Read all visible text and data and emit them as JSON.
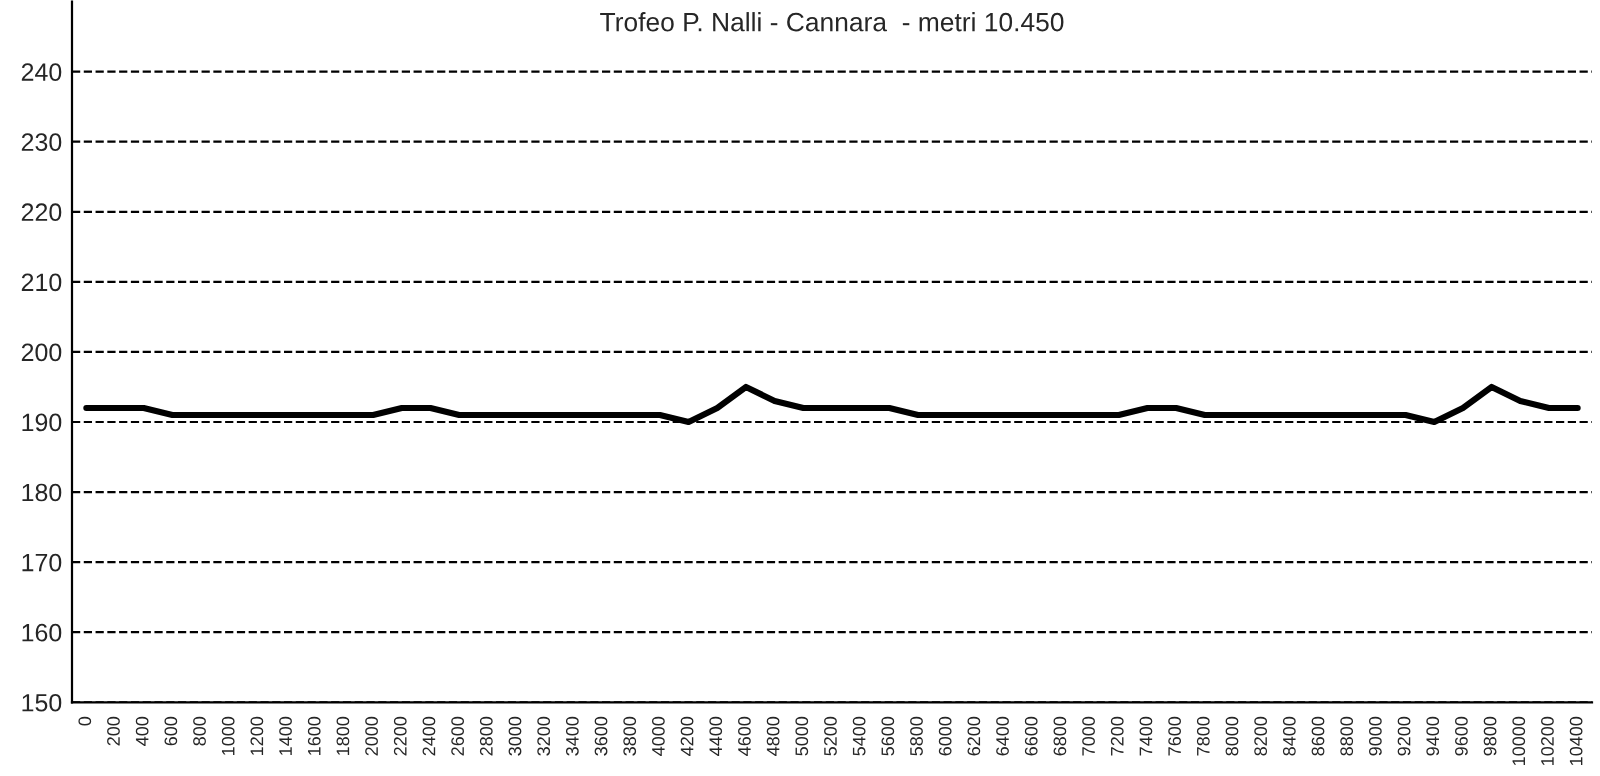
{
  "chart_data": {
    "type": "line",
    "title": "Trofeo P. Nalli - Cannara  - metri 10.450",
    "categories": [
      "0",
      "200",
      "400",
      "600",
      "800",
      "1000",
      "1200",
      "1400",
      "1600",
      "1800",
      "2000",
      "2200",
      "2400",
      "2600",
      "2800",
      "3000",
      "3200",
      "3400",
      "3600",
      "3800",
      "4000",
      "4200",
      "4400",
      "4600",
      "4800",
      "5000",
      "5200",
      "5400",
      "5600",
      "5800",
      "6000",
      "6200",
      "6400",
      "6600",
      "6800",
      "7000",
      "7200",
      "7400",
      "7600",
      "7800",
      "8000",
      "8200",
      "8400",
      "8600",
      "8800",
      "9000",
      "9200",
      "9400",
      "9600",
      "9800",
      "10000",
      "10200",
      "10400"
    ],
    "series": [
      {
        "color": "#000000",
        "values": [
          192,
          192,
          192,
          191,
          191,
          191,
          191,
          191,
          191,
          191,
          191,
          192,
          192,
          191,
          191,
          191,
          191,
          191,
          191,
          191,
          191,
          190,
          192,
          195,
          193,
          192,
          192,
          192,
          192,
          191,
          191,
          191,
          191,
          191,
          191,
          191,
          191,
          192,
          192,
          191,
          191,
          191,
          191,
          191,
          191,
          191,
          191,
          190,
          192,
          195,
          193,
          192,
          192
        ]
      }
    ],
    "ylim": [
      150,
      250
    ],
    "yticks": [
      150,
      160,
      170,
      180,
      190,
      200,
      210,
      220,
      230,
      240
    ],
    "grid": "y",
    "legend": false,
    "marker": "none",
    "line_style": "solid"
  }
}
